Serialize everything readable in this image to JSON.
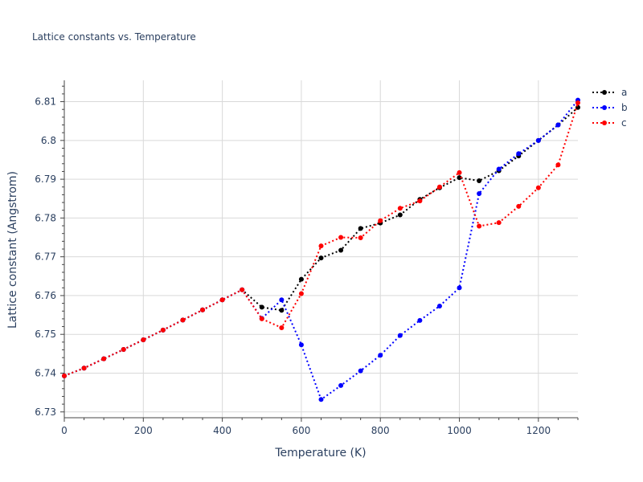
{
  "chart_data": {
    "type": "line",
    "title": "Lattice constants vs. Temperature",
    "xlabel": "Temperature (K)",
    "ylabel": "Lattice constant (Angstrom)",
    "xlim": [
      0,
      1300
    ],
    "ylim": [
      6.7285,
      6.8155
    ],
    "x_ticks": [
      0,
      200,
      400,
      600,
      800,
      1000,
      1200
    ],
    "x_tick_labels": [
      "0",
      "200",
      "400",
      "600",
      "800",
      "1000",
      "1200"
    ],
    "y_ticks": [
      6.73,
      6.74,
      6.75,
      6.76,
      6.77,
      6.78,
      6.79,
      6.8,
      6.81
    ],
    "y_tick_labels": [
      "6.73",
      "6.74",
      "6.75",
      "6.76",
      "6.77",
      "6.78",
      "6.79",
      "6.8",
      "6.81"
    ],
    "grid": true,
    "legend_position": "top-right",
    "x": [
      0,
      50,
      100,
      150,
      200,
      250,
      300,
      350,
      400,
      450,
      500,
      550,
      600,
      650,
      700,
      750,
      800,
      850,
      900,
      950,
      1000,
      1050,
      1100,
      1150,
      1200,
      1250,
      1300
    ],
    "series": [
      {
        "name": "a",
        "color": "#000000",
        "values": [
          6.7393,
          6.7413,
          6.7437,
          6.7461,
          6.7486,
          6.7511,
          6.7537,
          6.7563,
          6.7589,
          6.7615,
          6.757,
          6.7562,
          6.7642,
          6.7697,
          6.7717,
          6.7773,
          6.7787,
          6.7808,
          6.7848,
          6.7878,
          6.7904,
          6.7896,
          6.7922,
          6.796,
          6.8,
          6.804,
          6.8085
        ]
      },
      {
        "name": "b",
        "color": "#0000ff",
        "values": [
          6.7393,
          6.7413,
          6.7437,
          6.7461,
          6.7486,
          6.7511,
          6.7537,
          6.7563,
          6.7589,
          6.7615,
          6.7541,
          6.7589,
          6.7473,
          6.7332,
          6.7368,
          6.7406,
          6.7446,
          6.7497,
          6.7536,
          6.7573,
          6.762,
          6.7863,
          6.7926,
          6.7966,
          6.8,
          6.804,
          6.8104
        ]
      },
      {
        "name": "c",
        "color": "#ff0000",
        "values": [
          6.7393,
          6.7413,
          6.7437,
          6.7461,
          6.7486,
          6.7511,
          6.7537,
          6.7563,
          6.7589,
          6.7615,
          6.754,
          6.7517,
          6.7605,
          6.7728,
          6.775,
          6.7749,
          6.7793,
          6.7825,
          6.7844,
          6.788,
          6.7917,
          6.7779,
          6.7788,
          6.783,
          6.7878,
          6.7937,
          6.8097
        ]
      }
    ]
  }
}
